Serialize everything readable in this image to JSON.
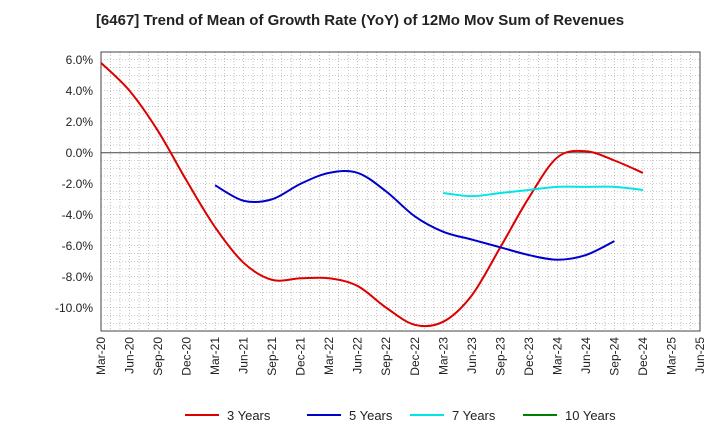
{
  "chart_data": {
    "type": "line",
    "title": "[6467]  Trend of Mean of Growth Rate (YoY) of 12Mo Mov Sum of Revenues",
    "xlabel": "",
    "ylabel": "",
    "ylim": [
      -11.5,
      6.5
    ],
    "y_ticks": [
      6.0,
      4.0,
      2.0,
      0.0,
      -2.0,
      -4.0,
      -6.0,
      -8.0,
      -10.0
    ],
    "y_tick_labels": [
      "6.0%",
      "4.0%",
      "2.0%",
      "0.0%",
      "-2.0%",
      "-4.0%",
      "-6.0%",
      "-8.0%",
      "-10.0%"
    ],
    "x_tick_labels": [
      "Mar-20",
      "Jun-20",
      "Sep-20",
      "Dec-20",
      "Mar-21",
      "Jun-21",
      "Sep-21",
      "Dec-21",
      "Mar-22",
      "Jun-22",
      "Sep-22",
      "Dec-22",
      "Mar-23",
      "Jun-23",
      "Sep-23",
      "Dec-23",
      "Mar-24",
      "Jun-24",
      "Sep-24",
      "Dec-24",
      "Mar-25",
      "Jun-25"
    ],
    "grid": true,
    "legend_position": "bottom",
    "series": [
      {
        "name": "3 Years",
        "color": "#dd0000",
        "start_index": 0,
        "values": [
          5.8,
          4.0,
          1.4,
          -1.8,
          -4.8,
          -7.1,
          -8.2,
          -8.1,
          -8.1,
          -8.6,
          -10.0,
          -11.1,
          -10.9,
          -9.2,
          -6.1,
          -2.9,
          -0.3,
          0.1,
          -0.5,
          -1.3
        ]
      },
      {
        "name": "5 Years",
        "color": "#0000cc",
        "start_index": 4,
        "values": [
          -2.1,
          -3.1,
          -3.0,
          -2.0,
          -1.3,
          -1.3,
          -2.5,
          -4.1,
          -5.1,
          -5.6,
          -6.1,
          -6.6,
          -6.9,
          -6.6,
          -5.7
        ]
      },
      {
        "name": "7 Years",
        "color": "#00e5e5",
        "start_index": 12,
        "values": [
          -2.6,
          -2.8,
          -2.6,
          -2.4,
          -2.2,
          -2.2,
          -2.2,
          -2.4
        ]
      },
      {
        "name": "10 Years",
        "color": "#008000",
        "start_index": 0,
        "values": []
      }
    ]
  }
}
